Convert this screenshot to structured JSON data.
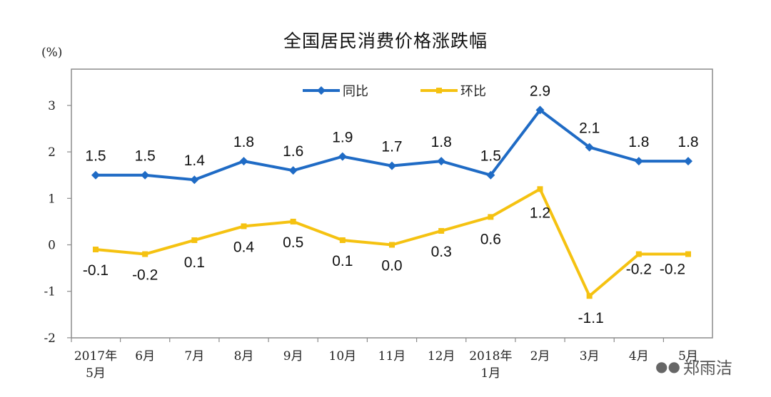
{
  "chart_data": {
    "type": "line",
    "title": "全国居民消费价格涨跌幅",
    "unit_label": "(%)",
    "categories": [
      [
        "2017年",
        "5月"
      ],
      [
        "6月"
      ],
      [
        "7月"
      ],
      [
        "8月"
      ],
      [
        "9月"
      ],
      [
        "10月"
      ],
      [
        "11月"
      ],
      [
        "12月"
      ],
      [
        "2018年",
        "1月"
      ],
      [
        "2月"
      ],
      [
        "3月"
      ],
      [
        "4月"
      ],
      [
        "5月"
      ]
    ],
    "ylim": [
      -2,
      3.5
    ],
    "yticks": [
      -2,
      -1,
      0,
      1,
      2,
      3
    ],
    "grid": false,
    "legend_position": "top-center",
    "series": [
      {
        "name": "同比",
        "color": "#1F6BC5",
        "values": [
          1.5,
          1.5,
          1.4,
          1.8,
          1.6,
          1.9,
          1.7,
          1.8,
          1.5,
          2.9,
          2.1,
          1.8,
          1.8
        ],
        "labels": [
          "1.5",
          "1.5",
          "1.4",
          "1.8",
          "1.6",
          "1.9",
          "1.7",
          "1.8",
          "1.5",
          "2.9",
          "2.1",
          "1.8",
          "1.8"
        ]
      },
      {
        "name": "环比",
        "color": "#F5C211",
        "values": [
          -0.1,
          -0.2,
          0.1,
          0.4,
          0.5,
          0.1,
          0.0,
          0.3,
          0.6,
          1.2,
          -1.1,
          -0.2,
          -0.2
        ],
        "labels": [
          "-0.1",
          "-0.2",
          "0.1",
          "0.4",
          "0.5",
          "0.1",
          "0.0",
          "0.3",
          "0.6",
          "1.2",
          "-1.1",
          "-0.2",
          "-0.2"
        ]
      }
    ]
  },
  "watermark": {
    "text": "郑雨洁",
    "icon": "wechat-icon"
  }
}
